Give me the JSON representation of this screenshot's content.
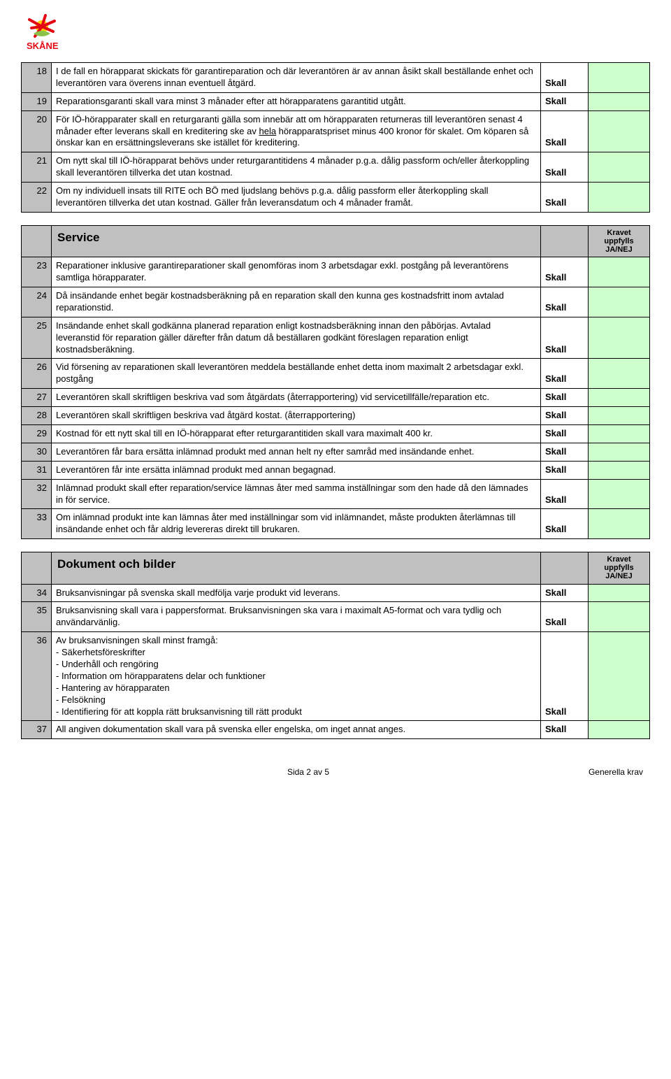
{
  "logo_text": "SKÅNE",
  "table1_rows": [
    {
      "n": "18",
      "text": "I de fall en hörapparat skickats för garantireparation och där leverantören är av annan åsikt skall beställande enhet och leverantören vara överens innan eventuell åtgärd.",
      "s": "Skall"
    },
    {
      "n": "19",
      "text": "Reparationsgaranti skall vara minst 3 månader efter att hörapparatens garantitid utgått.",
      "s": "Skall"
    },
    {
      "n": "20",
      "text": "För IÖ-hörapparater skall en returgaranti gälla som innebär att om hörapparaten returneras till leverantören senast 4 månader efter leverans skall en kreditering ske av ",
      "u": "hela",
      "text2": " hörapparatspriset minus 400 kronor för skalet. Om köparen så önskar kan en ersättningsleverans ske istället för kreditering.",
      "s": "Skall"
    },
    {
      "n": "21",
      "text": "Om nytt skal till IÖ-hörapparat behövs under returgarantitidens 4 månader p.g.a. dålig passform och/eller återkoppling skall leverantören tillverka det utan kostnad.",
      "s": "Skall"
    },
    {
      "n": "22",
      "text": "Om ny individuell insats till RITE och BÖ med ljudslang behövs p.g.a. dålig passform eller återkoppling skall leverantören tillverka det utan kostnad. Gäller från leveransdatum och 4 månader framåt.",
      "s": "Skall"
    }
  ],
  "section2_title": "Service",
  "yn_label": "Kravet uppfylls JA/NEJ",
  "table2_rows": [
    {
      "n": "23",
      "text": "Reparationer inklusive garantireparationer skall genomföras inom 3 arbetsdagar exkl. postgång på leverantörens samtliga hörapparater.",
      "s": "Skall"
    },
    {
      "n": "24",
      "text": "Då insändande enhet begär kostnadsberäkning på en reparation skall den kunna ges kostnadsfritt inom avtalad reparationstid.",
      "s": "Skall"
    },
    {
      "n": "25",
      "text": "Insändande enhet skall godkänna planerad reparation enligt kostnadsberäkning innan den påbörjas. Avtalad leveranstid för reparation gäller därefter från datum då beställaren godkänt föreslagen reparation enligt kostnadsberäkning.",
      "s": "Skall"
    },
    {
      "n": "26",
      "text": "Vid försening av reparationen skall leverantören meddela beställande enhet detta inom maximalt 2 arbetsdagar exkl. postgång",
      "s": "Skall"
    },
    {
      "n": "27",
      "text": "Leverantören skall skriftligen beskriva vad som åtgärdats (återrapportering) vid servicetillfälle/reparation etc.",
      "s": "Skall"
    },
    {
      "n": "28",
      "text": "Leverantören skall skriftligen beskriva vad åtgärd kostat. (återrapportering)",
      "s": "Skall"
    },
    {
      "n": "29",
      "text": "Kostnad för ett nytt skal till en IÖ-hörapparat efter returgarantitiden skall vara maximalt 400 kr.",
      "s": "Skall"
    },
    {
      "n": "30",
      "text": "Leverantören får bara ersätta inlämnad produkt med annan helt ny efter samråd med insändande enhet.",
      "s": "Skall"
    },
    {
      "n": "31",
      "text": "Leverantören får inte ersätta inlämnad produkt med annan begagnad.",
      "s": "Skall"
    },
    {
      "n": "32",
      "text": "Inlämnad produkt skall efter reparation/service lämnas åter med samma inställningar som den hade då den lämnades in för service.",
      "s": "Skall"
    },
    {
      "n": "33",
      "text": "Om inlämnad produkt inte kan lämnas åter med inställningar som vid inlämnandet, måste produkten återlämnas till insändande enhet och får aldrig levereras direkt till brukaren.",
      "s": "Skall"
    }
  ],
  "section3_title": "Dokument och bilder",
  "table3_rows": [
    {
      "n": "34",
      "text": "Bruksanvisningar på svenska skall medfölja varje produkt vid leverans.",
      "s": "Skall"
    },
    {
      "n": "35",
      "text": "Bruksanvisning skall vara i pappersformat. Bruksanvisningen ska vara i maximalt A5-format och vara tydlig och användarvänlig.",
      "s": "Skall"
    },
    {
      "n": "36",
      "text": "Av bruksanvisningen skall minst framgå:\n- Säkerhetsföreskrifter\n- Underhåll och rengöring\n- Information om hörapparatens delar och funktioner\n- Hantering av hörapparaten\n- Felsökning\n- Identifiering för att koppla rätt bruksanvisning till rätt produkt",
      "s": "Skall"
    },
    {
      "n": "37",
      "text": "All angiven dokumentation skall vara på svenska eller engelska, om inget annat anges.",
      "s": "Skall"
    }
  ],
  "footer_center": "Sida 2 av 5",
  "footer_right": "Generella krav"
}
